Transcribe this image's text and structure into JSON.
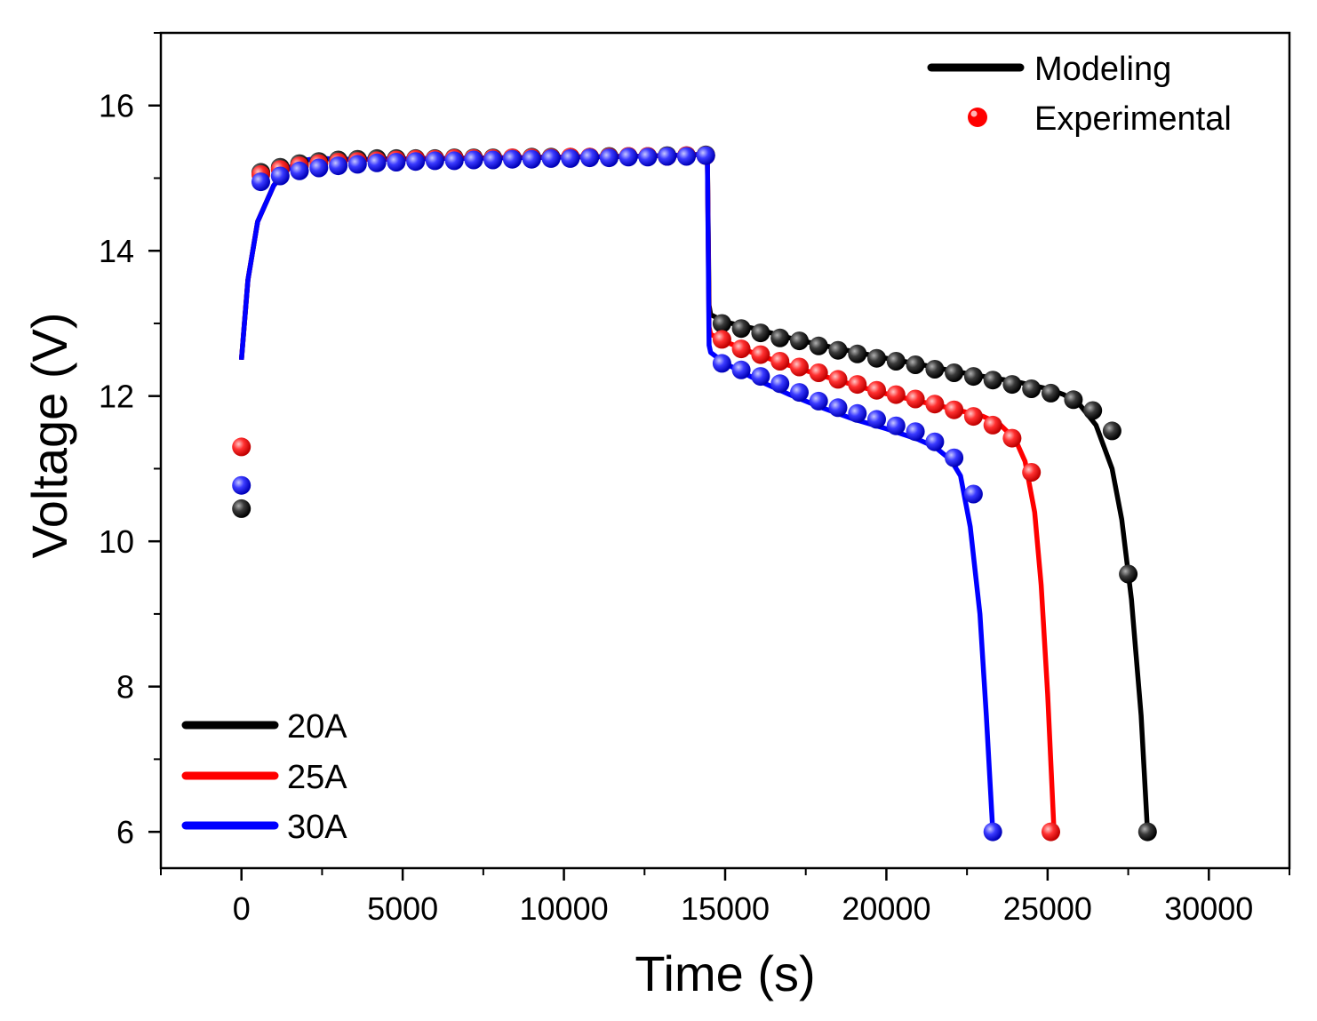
{
  "chart_data": {
    "type": "line",
    "title": "",
    "xlabel": "Time (s)",
    "ylabel": "Voltage (V)",
    "xlim": [
      -2500,
      32500
    ],
    "ylim": [
      5.5,
      17
    ],
    "xticks": [
      0,
      5000,
      10000,
      15000,
      20000,
      25000,
      30000
    ],
    "xtick_labels": [
      "0",
      "5000",
      "10000",
      "15000",
      "20000",
      "25000",
      "30000"
    ],
    "yticks": [
      6,
      8,
      10,
      12,
      14,
      16
    ],
    "ytick_labels": [
      "6",
      "8",
      "10",
      "12",
      "14",
      "16"
    ],
    "style_legend": {
      "position": "top-right",
      "entries": [
        {
          "label": "Modeling",
          "kind": "line",
          "color": "#000000"
        },
        {
          "label": "Experimental",
          "kind": "marker",
          "color": "#ff0000"
        }
      ]
    },
    "series_legend": {
      "position": "bottom-left",
      "entries": [
        {
          "label": "20A",
          "color": "#000000"
        },
        {
          "label": "25A",
          "color": "#ff0000"
        },
        {
          "label": "30A",
          "color": "#0000ff"
        }
      ]
    },
    "series": [
      {
        "name": "20A",
        "color": "#000000",
        "modeling": {
          "x": [
            0,
            200,
            500,
            1000,
            1500,
            2000,
            2500,
            3000,
            4000,
            6000,
            8000,
            10000,
            12000,
            14000,
            14450,
            14500,
            14550,
            15000,
            16000,
            17000,
            18000,
            19000,
            20000,
            21000,
            22000,
            23000,
            24000,
            25000,
            25500,
            26000,
            26500,
            27000,
            27300,
            27600,
            27900,
            28100
          ],
          "y": [
            12.5,
            13.6,
            14.4,
            14.9,
            15.15,
            15.25,
            15.27,
            15.26,
            15.26,
            15.27,
            15.28,
            15.29,
            15.3,
            15.32,
            15.33,
            13.25,
            13.12,
            13.02,
            12.92,
            12.8,
            12.7,
            12.61,
            12.52,
            12.44,
            12.35,
            12.27,
            12.2,
            12.1,
            12.02,
            11.88,
            11.6,
            11.0,
            10.3,
            9.2,
            7.6,
            6.0
          ]
        },
        "experimental": {
          "x": [
            0,
            600,
            1200,
            1800,
            2400,
            3000,
            3600,
            4200,
            4800,
            5400,
            6000,
            6600,
            7200,
            7800,
            8400,
            9000,
            9600,
            10200,
            10800,
            11400,
            12000,
            12600,
            13200,
            13800,
            14400,
            14900,
            15500,
            16100,
            16700,
            17300,
            17900,
            18500,
            19100,
            19700,
            20300,
            20900,
            21500,
            22100,
            22700,
            23300,
            23900,
            24500,
            25100,
            25800,
            26400,
            27000,
            27500,
            28100
          ],
          "y": [
            10.45,
            15.08,
            15.15,
            15.2,
            15.23,
            15.25,
            15.26,
            15.27,
            15.27,
            15.27,
            15.27,
            15.28,
            15.28,
            15.28,
            15.28,
            15.29,
            15.29,
            15.29,
            15.29,
            15.3,
            15.3,
            15.3,
            15.31,
            15.31,
            15.32,
            13.0,
            12.93,
            12.87,
            12.8,
            12.76,
            12.69,
            12.63,
            12.58,
            12.52,
            12.48,
            12.43,
            12.37,
            12.32,
            12.27,
            12.22,
            12.16,
            12.1,
            12.04,
            11.95,
            11.8,
            11.52,
            9.55,
            6.0
          ]
        }
      },
      {
        "name": "25A",
        "color": "#ff0000",
        "modeling": {
          "x": [
            0,
            200,
            500,
            1000,
            1500,
            2000,
            2500,
            3000,
            4000,
            6000,
            8000,
            10000,
            12000,
            14000,
            14450,
            14500,
            14550,
            15000,
            16000,
            17000,
            18000,
            19000,
            20000,
            21000,
            22000,
            23000,
            23500,
            24000,
            24300,
            24600,
            24800,
            25000,
            25200
          ],
          "y": [
            12.5,
            13.6,
            14.4,
            14.9,
            15.15,
            15.25,
            15.27,
            15.26,
            15.26,
            15.27,
            15.28,
            15.29,
            15.3,
            15.32,
            15.33,
            12.95,
            12.85,
            12.75,
            12.57,
            12.42,
            12.28,
            12.15,
            12.03,
            11.93,
            11.83,
            11.72,
            11.62,
            11.4,
            11.1,
            10.4,
            9.4,
            7.9,
            6.0
          ]
        },
        "experimental": {
          "x": [
            0,
            600,
            1200,
            1800,
            2400,
            3000,
            3600,
            4200,
            4800,
            5400,
            6000,
            6600,
            7200,
            7800,
            8400,
            9000,
            9600,
            10200,
            10800,
            11400,
            12000,
            12600,
            13200,
            13800,
            14400,
            14900,
            15500,
            16100,
            16700,
            17300,
            17900,
            18500,
            19100,
            19700,
            20300,
            20900,
            21500,
            22100,
            22700,
            23300,
            23900,
            24500,
            25100
          ],
          "y": [
            11.3,
            15.05,
            15.12,
            15.17,
            15.2,
            15.22,
            15.23,
            15.24,
            15.25,
            15.26,
            15.26,
            15.27,
            15.27,
            15.27,
            15.28,
            15.28,
            15.28,
            15.29,
            15.29,
            15.29,
            15.3,
            15.3,
            15.3,
            15.31,
            15.31,
            12.78,
            12.65,
            12.57,
            12.48,
            12.4,
            12.32,
            12.23,
            12.16,
            12.08,
            12.02,
            11.96,
            11.89,
            11.81,
            11.72,
            11.6,
            11.42,
            10.95,
            6.0
          ]
        }
      },
      {
        "name": "30A",
        "color": "#0000ff",
        "modeling": {
          "x": [
            0,
            200,
            500,
            1000,
            1500,
            2000,
            2500,
            3000,
            4000,
            6000,
            8000,
            10000,
            12000,
            14000,
            14450,
            14500,
            14550,
            15000,
            16000,
            17000,
            18000,
            19000,
            20000,
            21000,
            21500,
            22000,
            22300,
            22600,
            22900,
            23100,
            23300
          ],
          "y": [
            12.5,
            13.6,
            14.4,
            14.9,
            15.15,
            15.25,
            15.27,
            15.26,
            15.26,
            15.27,
            15.28,
            15.29,
            15.3,
            15.32,
            15.33,
            12.7,
            12.6,
            12.45,
            12.22,
            12.02,
            11.84,
            11.68,
            11.55,
            11.4,
            11.3,
            11.12,
            10.9,
            10.2,
            9.0,
            7.6,
            6.0
          ]
        },
        "experimental": {
          "x": [
            0,
            600,
            1200,
            1800,
            2400,
            3000,
            3600,
            4200,
            4800,
            5400,
            6000,
            6600,
            7200,
            7800,
            8400,
            9000,
            9600,
            10200,
            10800,
            11400,
            12000,
            12600,
            13200,
            13800,
            14400,
            14900,
            15500,
            16100,
            16700,
            17300,
            17900,
            18500,
            19100,
            19700,
            20300,
            20900,
            21500,
            22100,
            22700,
            23300
          ],
          "y": [
            10.77,
            14.95,
            15.03,
            15.1,
            15.14,
            15.17,
            15.19,
            15.21,
            15.22,
            15.23,
            15.24,
            15.24,
            15.25,
            15.25,
            15.26,
            15.26,
            15.27,
            15.27,
            15.28,
            15.28,
            15.29,
            15.29,
            15.3,
            15.3,
            15.31,
            12.45,
            12.36,
            12.27,
            12.17,
            12.05,
            11.93,
            11.84,
            11.76,
            11.68,
            11.59,
            11.51,
            11.37,
            11.15,
            10.65,
            6.0
          ]
        }
      }
    ]
  }
}
